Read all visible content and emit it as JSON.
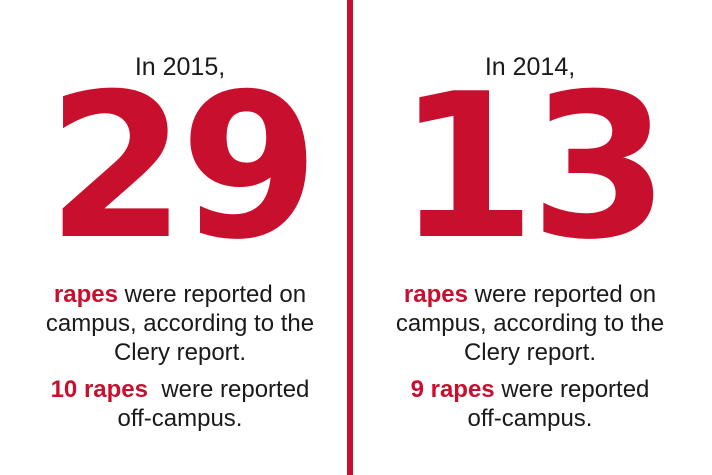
{
  "colors": {
    "accent": "#c8102e",
    "text": "#1a1a1a",
    "background": "#ffffff"
  },
  "left": {
    "year_text": "In 2015,",
    "big_number": "29",
    "highlight": "rapes",
    "desc_line1_rest": " were reported on",
    "desc_line2": "campus, according to the",
    "desc_line3": "Clery report.",
    "off_highlight": "10 rapes",
    "off_line1_rest": "  were reported",
    "off_line2": "off-campus."
  },
  "right": {
    "year_text": "In 2014,",
    "big_number": "13",
    "highlight": "rapes",
    "desc_line1_rest": " were reported on",
    "desc_line2": "campus, according to the",
    "desc_line3": "Clery report.",
    "off_highlight": "9 rapes",
    "off_line1_rest": " were reported",
    "off_line2": "off-campus."
  }
}
